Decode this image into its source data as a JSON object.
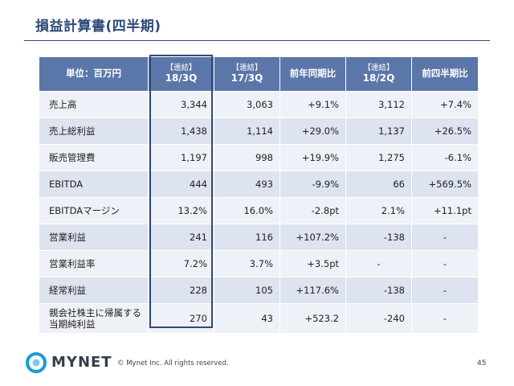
{
  "title": "損益計算書(四半期)",
  "table": {
    "header": {
      "unit": "単位：百万円",
      "cols": [
        {
          "tag": "【連結】",
          "period": "18/3Q"
        },
        {
          "tag": "【連結】",
          "period": "17/3Q"
        },
        {
          "label": "前年同期比"
        },
        {
          "tag": "【連結】",
          "period": "18/2Q"
        },
        {
          "label": "前四半期比"
        }
      ]
    },
    "rows": [
      {
        "label": "売上高",
        "v": [
          "3,344",
          "3,063",
          "+9.1%",
          "3,112",
          "+7.4%"
        ]
      },
      {
        "label": "売上総利益",
        "v": [
          "1,438",
          "1,114",
          "+29.0%",
          "1,137",
          "+26.5%"
        ]
      },
      {
        "label": "販売管理費",
        "v": [
          "1,197",
          "998",
          "+19.9%",
          "1,275",
          "-6.1%"
        ]
      },
      {
        "label": "EBITDA",
        "v": [
          "444",
          "493",
          "-9.9%",
          "66",
          "+569.5%"
        ]
      },
      {
        "label": "EBITDAマージン",
        "v": [
          "13.2%",
          "16.0%",
          "-2.8pt",
          "2.1%",
          "+11.1pt"
        ]
      },
      {
        "label": "営業利益",
        "v": [
          "241",
          "116",
          "+107.2%",
          "-138",
          "-"
        ]
      },
      {
        "label": "営業利益率",
        "v": [
          "7.2%",
          "3.7%",
          "+3.5pt",
          "-",
          "-"
        ]
      },
      {
        "label": "経常利益",
        "v": [
          "228",
          "105",
          "+117.6%",
          "-138",
          "-"
        ]
      },
      {
        "label_line1": "親会社株主に帰属する",
        "label_line2": "当期純利益",
        "v": [
          "270",
          "43",
          "+523.2",
          "-240",
          "-"
        ]
      }
    ]
  },
  "footer": {
    "brand": "MYNET",
    "copyright": "© Mynet Inc. All rights reserved.",
    "page": "45"
  },
  "colors": {
    "header_bg": "#5b76a8",
    "title": "#2f4a78",
    "row_even": "#dde3ef",
    "row_odd": "#eef1f7",
    "highlight_border": "#2f4a78",
    "logo_blue": "#1a9bd7"
  }
}
